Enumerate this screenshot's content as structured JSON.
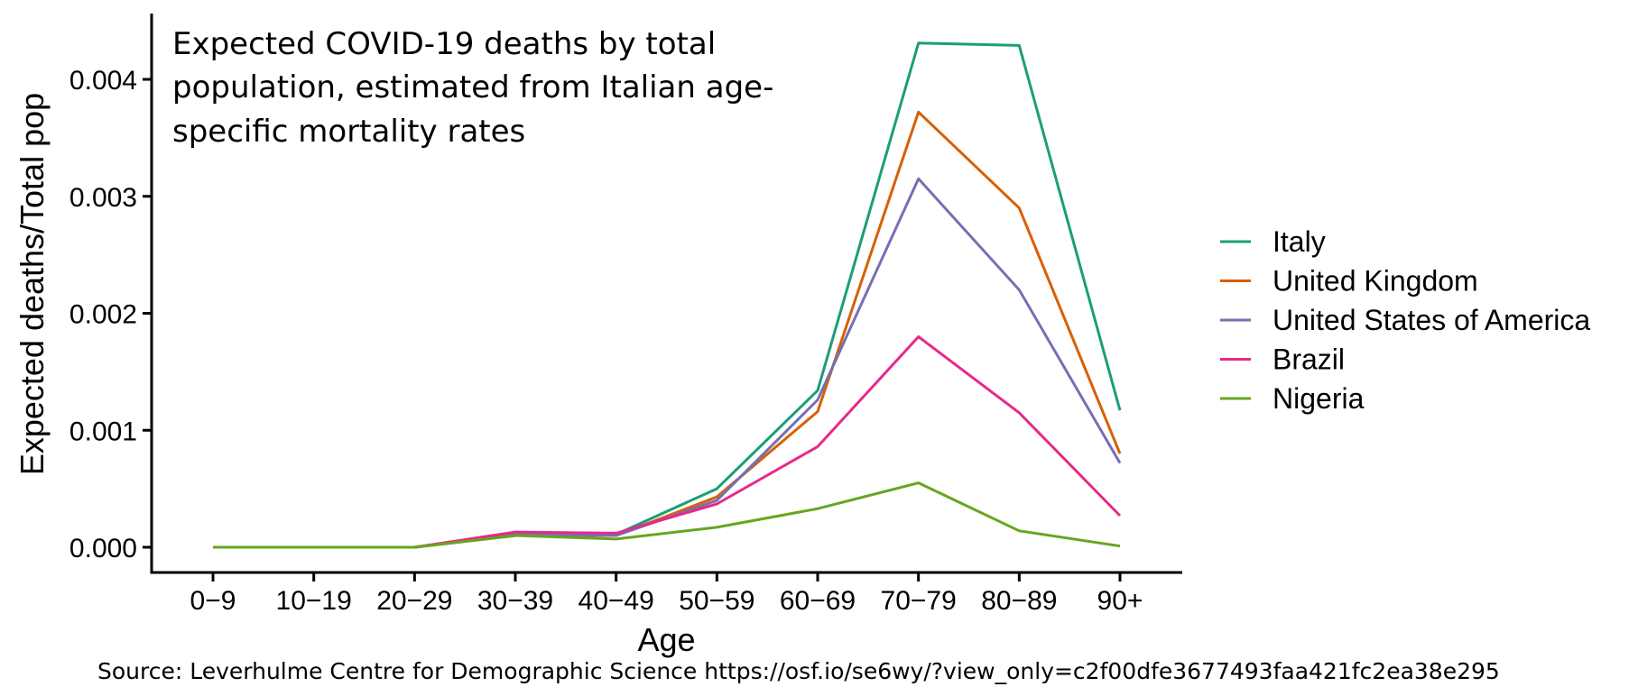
{
  "chart_data": {
    "type": "line",
    "annotation": [
      "Expected COVID-19 deaths by total",
      "population, estimated from Italian age-",
      "specific mortality rates"
    ],
    "xlabel": "Age",
    "ylabel": "Expected deaths/Total pop",
    "categories": [
      "0−9",
      "10−19",
      "20−29",
      "30−39",
      "40−49",
      "50−59",
      "60−69",
      "70−79",
      "80−89",
      "90+"
    ],
    "ylim": [
      0,
      0.0044
    ],
    "yticks": [
      0.0,
      0.001,
      0.002,
      0.003,
      0.004
    ],
    "ytick_labels": [
      "0.000",
      "0.001",
      "0.002",
      "0.003",
      "0.004"
    ],
    "grid": false,
    "legend_position": "right",
    "series": [
      {
        "name": "Italy",
        "color": "#1b9e77",
        "values": [
          0.0,
          0.0,
          0.0,
          0.0001,
          0.00011,
          0.0005,
          0.00134,
          0.00431,
          0.00429,
          0.00117
        ]
      },
      {
        "name": "United Kingdom",
        "color": "#d95f02",
        "values": [
          0.0,
          0.0,
          0.0,
          0.0001,
          0.0001,
          0.00043,
          0.00116,
          0.00372,
          0.0029,
          0.0008
        ]
      },
      {
        "name": "United States of America",
        "color": "#7570b3",
        "values": [
          0.0,
          0.0,
          0.0,
          0.00011,
          0.0001,
          0.0004,
          0.00126,
          0.00315,
          0.0022,
          0.00072
        ]
      },
      {
        "name": "Brazil",
        "color": "#e7298a",
        "values": [
          0.0,
          0.0,
          0.0,
          0.00013,
          0.00012,
          0.00037,
          0.00086,
          0.0018,
          0.00115,
          0.00027
        ]
      },
      {
        "name": "Nigeria",
        "color": "#66a61e",
        "values": [
          0.0,
          0.0,
          0.0,
          0.0001,
          7e-05,
          0.00017,
          0.00033,
          0.00055,
          0.00014,
          1e-05
        ]
      }
    ]
  },
  "source": {
    "label": "Source: Leverhulme Centre for Demographic Science",
    "url": "https://osf.io/se6wy/?view_only=c2f00dfe3677493faa421fc2ea38e295"
  }
}
